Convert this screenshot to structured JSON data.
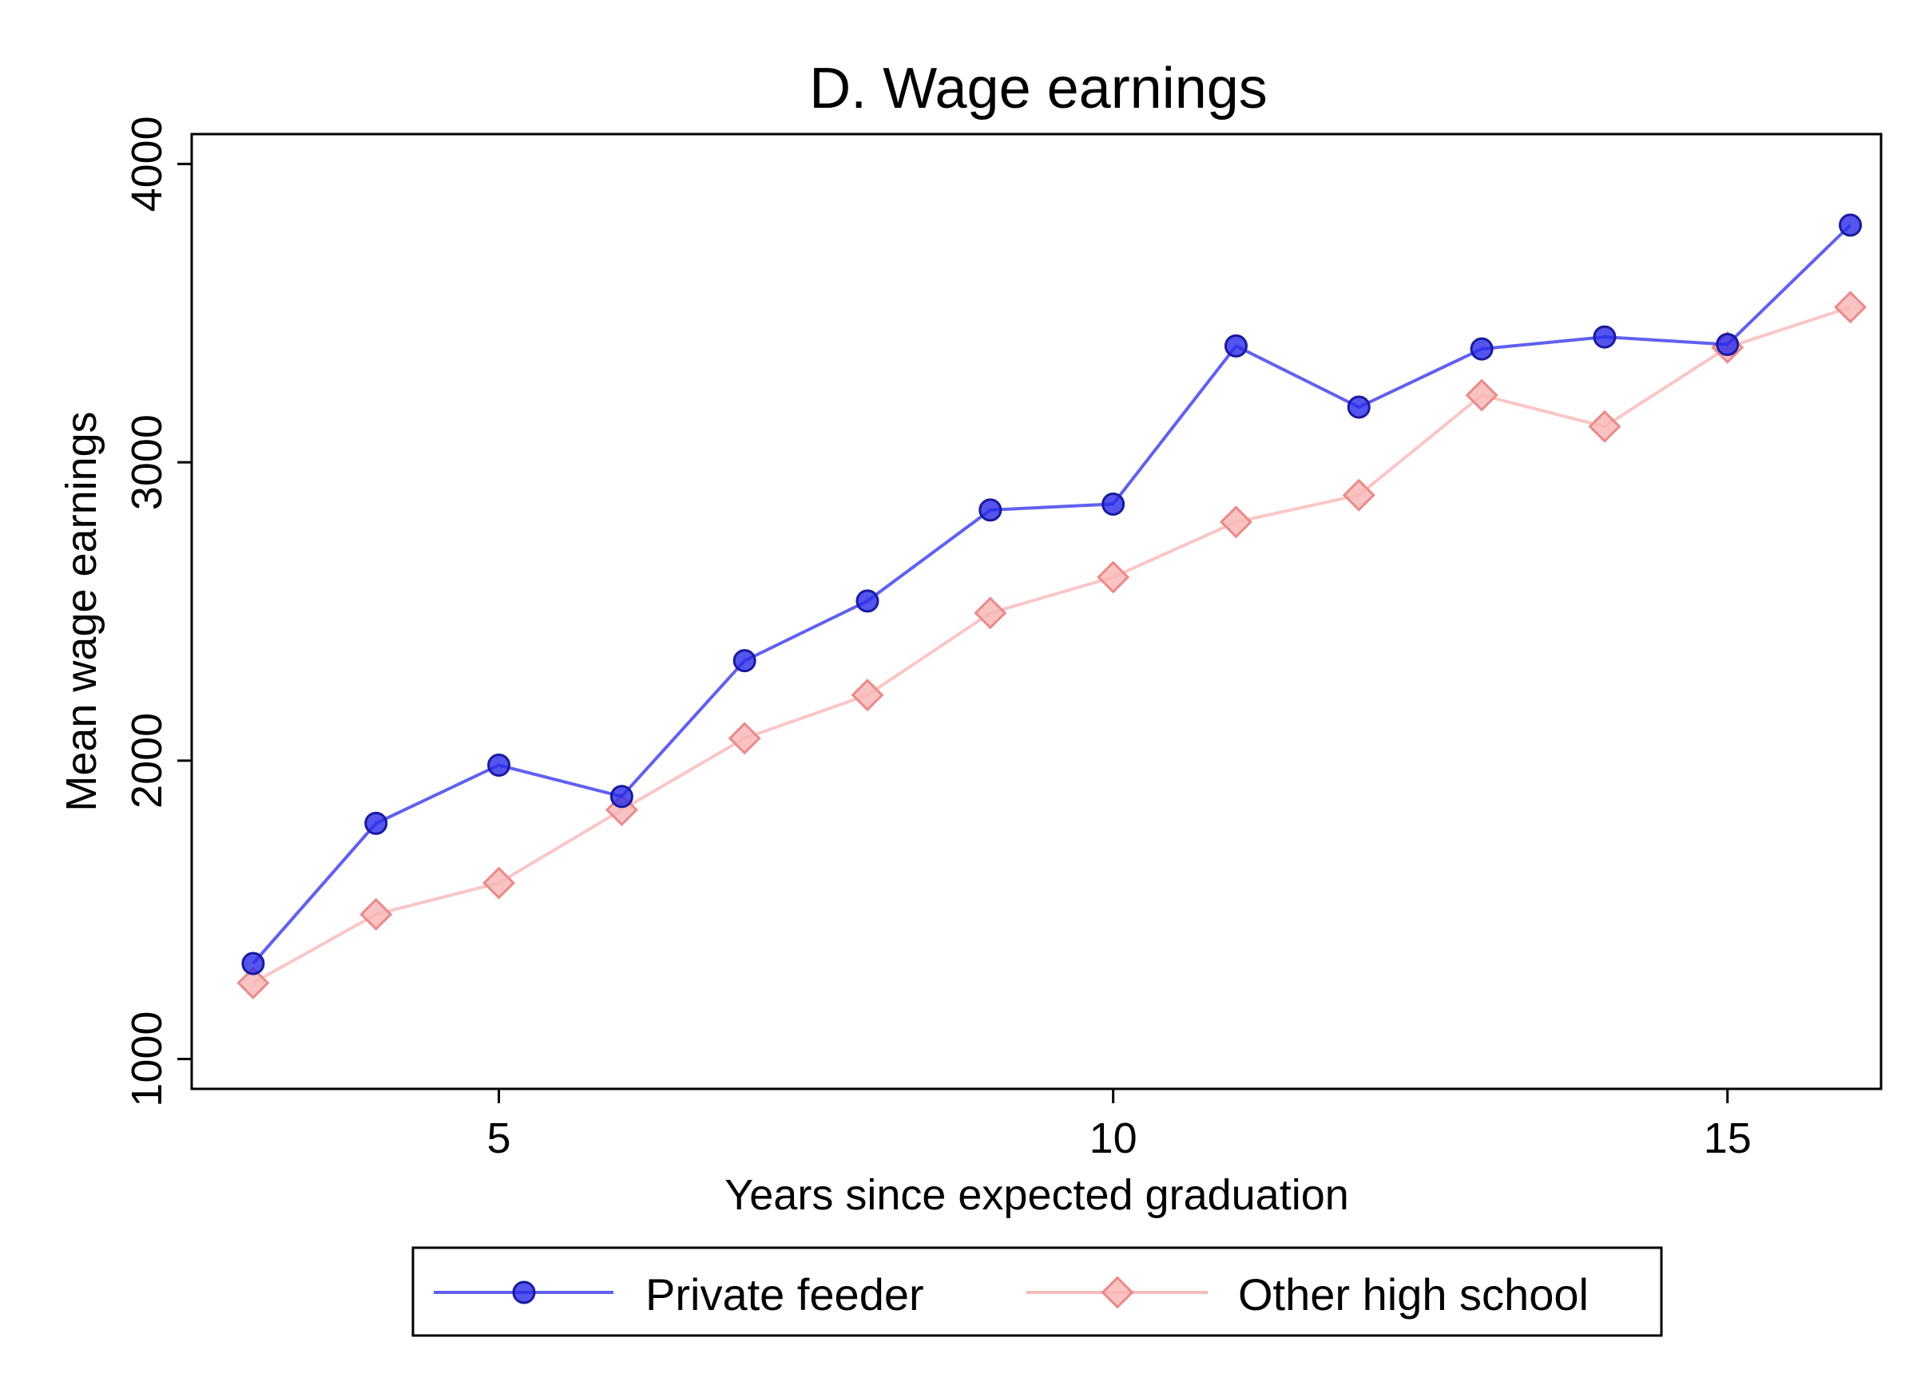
{
  "chart_data": {
    "type": "line",
    "title": "D. Wage earnings",
    "xlabel": "Years since expected graduation",
    "ylabel": "Mean wage earnings",
    "xlim": [
      2.5,
      16.25
    ],
    "ylim": [
      900,
      4100
    ],
    "xticks": [
      5,
      10,
      15
    ],
    "yticks": [
      1000,
      2000,
      3000,
      4000
    ],
    "grid": false,
    "legend_position": "bottom",
    "x": [
      3,
      4,
      5,
      6,
      7,
      8,
      9,
      10,
      11,
      12,
      13,
      14,
      15,
      16
    ],
    "series": [
      {
        "name": "Private feeder",
        "color": "#2b2bea",
        "marker": "circle",
        "values": [
          1320,
          1790,
          1985,
          1880,
          2335,
          2535,
          2840,
          2860,
          3390,
          3185,
          3380,
          3420,
          3395,
          3795
        ]
      },
      {
        "name": "Other high school",
        "color": "#f5a0a0",
        "marker": "diamond",
        "values": [
          1255,
          1485,
          1590,
          1835,
          2075,
          2220,
          2495,
          2615,
          2800,
          2890,
          3225,
          3120,
          3385,
          3520
        ]
      }
    ]
  }
}
